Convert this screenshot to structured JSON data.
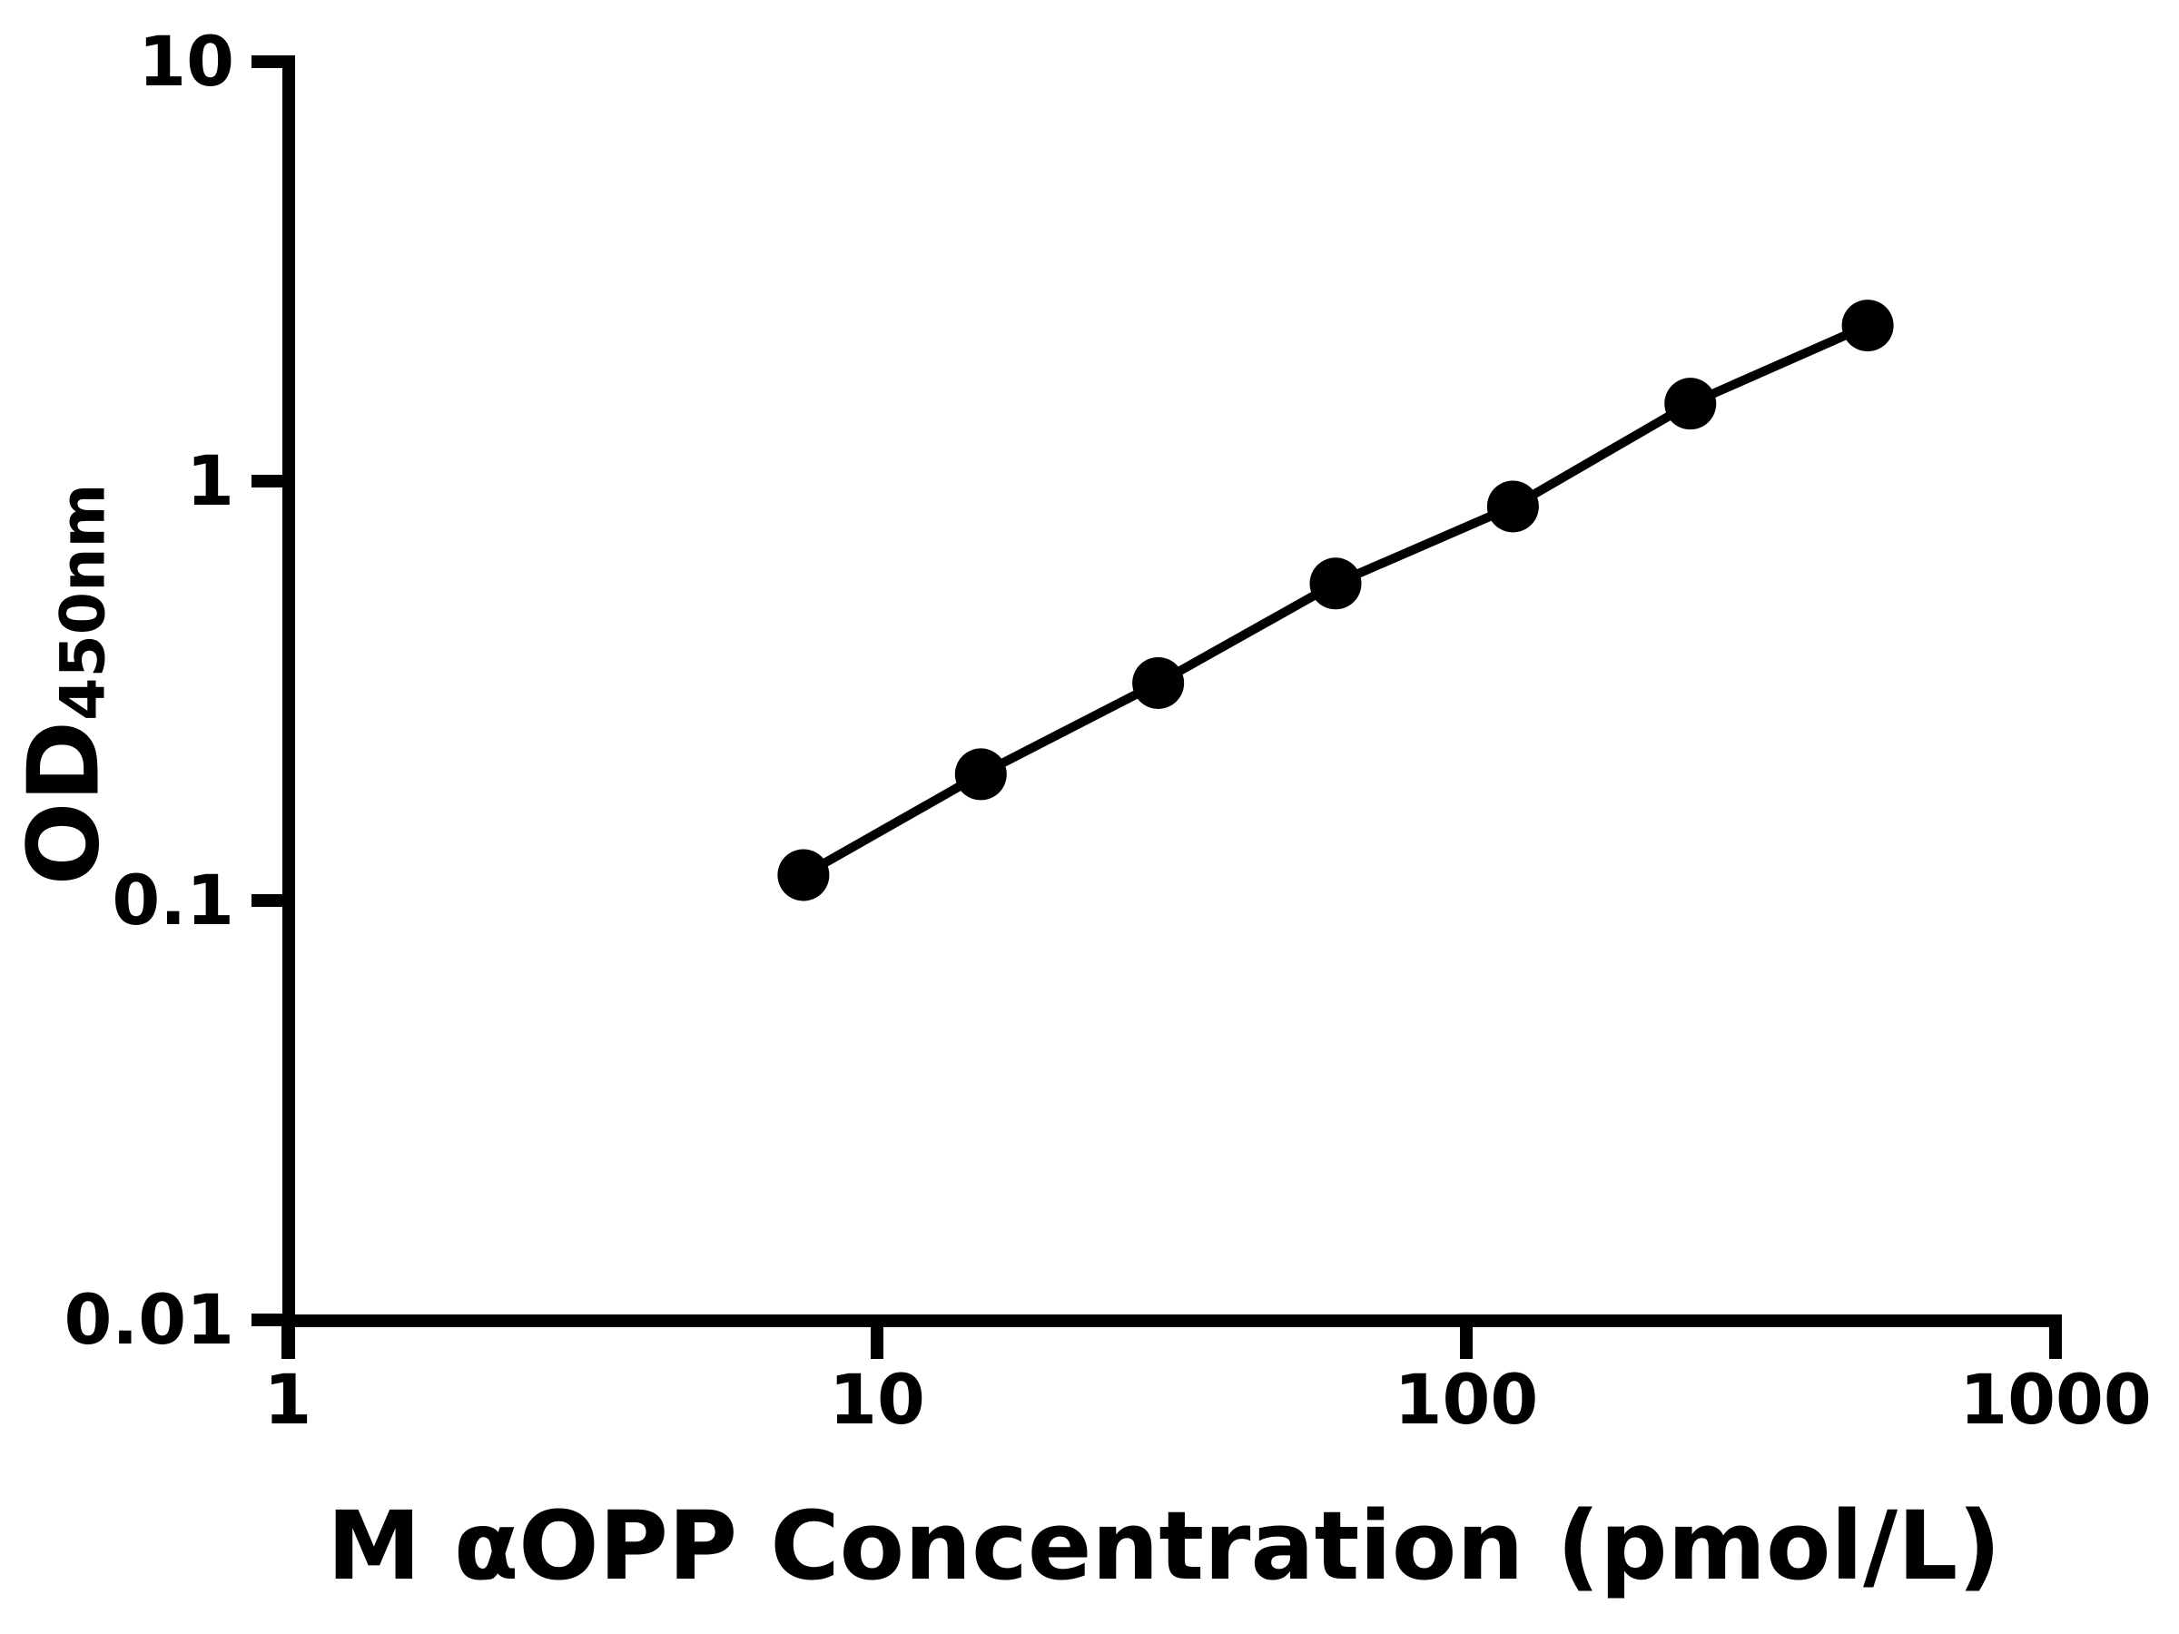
{
  "page": {
    "background": "#ffffff"
  },
  "chart_data": {
    "type": "line",
    "title": "",
    "xlabel": "M αOPP Concentration (pmol/L)",
    "ylabel": "OD450nm",
    "ylabel_main": "OD",
    "ylabel_sub": "450nm",
    "x_scale": "log",
    "y_scale": "log",
    "xlim": [
      1,
      1000
    ],
    "ylim": [
      0.01,
      10
    ],
    "grid": false,
    "legend": "none",
    "x": [
      7.5,
      15,
      30,
      60,
      120,
      240,
      480
    ],
    "y": [
      0.115,
      0.2,
      0.33,
      0.57,
      0.87,
      1.53,
      2.35
    ],
    "xticks": [
      {
        "value": 1,
        "label": "1"
      },
      {
        "value": 10,
        "label": "10"
      },
      {
        "value": 100,
        "label": "100"
      },
      {
        "value": 1000,
        "label": "1000"
      }
    ],
    "yticks": [
      {
        "value": 10,
        "label": "10"
      },
      {
        "value": 1,
        "label": "1"
      },
      {
        "value": 0.1,
        "label": "0.1"
      },
      {
        "value": 0.01,
        "label": "0.01"
      }
    ],
    "marker": {
      "shape": "circle",
      "color": "#000000"
    },
    "line_color": "#000000",
    "axis_color": "#000000"
  }
}
